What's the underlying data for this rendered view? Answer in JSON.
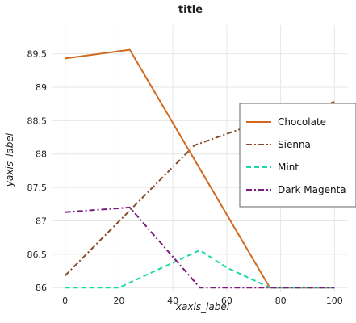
{
  "chart_data": {
    "type": "line",
    "title": "title",
    "xlabel": "xaxis_label",
    "ylabel": "yaxis_label",
    "xlim": [
      -5,
      105
    ],
    "ylim": [
      85.93,
      89.93
    ],
    "x_ticks": [
      0,
      20,
      40,
      60,
      80,
      100
    ],
    "y_ticks": [
      86,
      86.5,
      87,
      87.5,
      88,
      88.5,
      89,
      89.5
    ],
    "grid": true,
    "legend_position": "right",
    "series": [
      {
        "name": "Chocolate",
        "color": "#d2691e",
        "dash": "solid",
        "points": [
          [
            0,
            89.43
          ],
          [
            24,
            89.56
          ],
          [
            76,
            86.0
          ],
          [
            100,
            86.0
          ]
        ]
      },
      {
        "name": "Sienna",
        "color": "#8b4b2b",
        "dash": "dashdot",
        "points": [
          [
            0,
            86.18
          ],
          [
            48,
            88.13
          ],
          [
            76,
            88.53
          ],
          [
            100,
            88.78
          ]
        ]
      },
      {
        "name": "Mint",
        "color": "#1ad9a8",
        "dash": "dashed",
        "points": [
          [
            0,
            86.0
          ],
          [
            20,
            86.0
          ],
          [
            50,
            86.56
          ],
          [
            60,
            86.3
          ],
          [
            76,
            86.0
          ],
          [
            100,
            86.0
          ]
        ]
      },
      {
        "name": "Dark Magenta",
        "color": "#7b1b7e",
        "dash": "dashdot",
        "points": [
          [
            0,
            87.13
          ],
          [
            24,
            87.2
          ],
          [
            50,
            86.0
          ],
          [
            100,
            86.0
          ]
        ]
      }
    ]
  }
}
